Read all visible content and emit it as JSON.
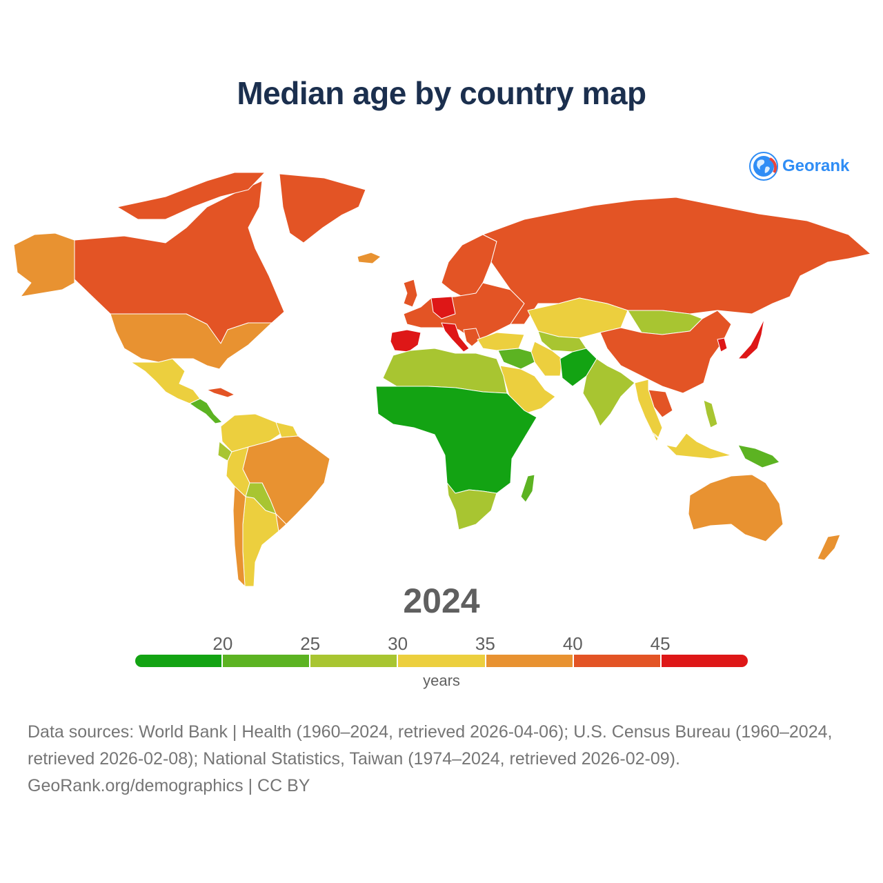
{
  "title": "Median age by country map",
  "brand": {
    "name": "Georank",
    "logo_icon": "globe-icon"
  },
  "year": "2024",
  "legend": {
    "ticks": [
      "20",
      "25",
      "30",
      "35",
      "40",
      "45"
    ],
    "unit": "years",
    "bins": [
      {
        "range": "<20",
        "color": "#13a313"
      },
      {
        "range": "20-25",
        "color": "#5cb322"
      },
      {
        "range": "25-30",
        "color": "#a8c531"
      },
      {
        "range": "30-35",
        "color": "#eccf3e"
      },
      {
        "range": "35-40",
        "color": "#e89231"
      },
      {
        "range": "40-45",
        "color": "#e35425"
      },
      {
        "range": ">45",
        "color": "#de1717"
      }
    ]
  },
  "source": {
    "line1": "Data sources: World Bank | Health (1960–2024, retrieved 2026-04-06); U.S. Census Bureau (1960–2024,",
    "line2": "retrieved 2026-02-08); National Statistics, Taiwan (1974–2024, retrieved 2026-02-09).",
    "line3": "GeoRank.org/demographics | CC BY"
  },
  "chart_data": {
    "type": "choropleth",
    "title": "Median age by country map",
    "year": 2024,
    "value_label": "years",
    "regions": [
      {
        "name": "Canada",
        "bin": "40-45"
      },
      {
        "name": "Alaska (United States)",
        "bin": "35-40"
      },
      {
        "name": "United States",
        "bin": "35-40"
      },
      {
        "name": "Greenland",
        "bin": "40-45"
      },
      {
        "name": "Mexico",
        "bin": "30-35"
      },
      {
        "name": "Central America",
        "bin": "20-25"
      },
      {
        "name": "Cuba",
        "bin": "40-45"
      },
      {
        "name": "Colombia and Venezuela",
        "bin": "30-35"
      },
      {
        "name": "Ecuador",
        "bin": "25-30"
      },
      {
        "name": "Peru",
        "bin": "30-35"
      },
      {
        "name": "Brazil",
        "bin": "35-40"
      },
      {
        "name": "Bolivia and Paraguay",
        "bin": "25-30"
      },
      {
        "name": "Argentina",
        "bin": "30-35"
      },
      {
        "name": "Chile",
        "bin": "35-40"
      },
      {
        "name": "Uruguay",
        "bin": "35-40"
      },
      {
        "name": "Iceland",
        "bin": "35-40"
      },
      {
        "name": "Spain and Portugal",
        "bin": ">45"
      },
      {
        "name": "Germany",
        "bin": ">45"
      },
      {
        "name": "Italy",
        "bin": ">45"
      },
      {
        "name": "Western Europe",
        "bin": "40-45"
      },
      {
        "name": "Scandinavia",
        "bin": "40-45"
      },
      {
        "name": "Eastern Europe",
        "bin": "40-45"
      },
      {
        "name": "Russia",
        "bin": "40-45"
      },
      {
        "name": "Turkey",
        "bin": "30-35"
      },
      {
        "name": "Kazakhstan",
        "bin": "30-35"
      },
      {
        "name": "Mongolia",
        "bin": "25-30"
      },
      {
        "name": "China",
        "bin": "40-45"
      },
      {
        "name": "Japan",
        "bin": ">45"
      },
      {
        "name": "South Korea",
        "bin": ">45"
      },
      {
        "name": "North Africa",
        "bin": "25-30"
      },
      {
        "name": "Saudi Arabia and Gulf",
        "bin": "30-35"
      },
      {
        "name": "Iran",
        "bin": "30-35"
      },
      {
        "name": "Iraq and Syria",
        "bin": "20-25"
      },
      {
        "name": "Central Asia",
        "bin": "25-30"
      },
      {
        "name": "Afghanistan and Pakistan",
        "bin": "<20"
      },
      {
        "name": "India",
        "bin": "25-30"
      },
      {
        "name": "Thailand",
        "bin": "40-45"
      },
      {
        "name": "Mainland Southeast Asia",
        "bin": "30-35"
      },
      {
        "name": "Indonesia",
        "bin": "30-35"
      },
      {
        "name": "Philippines",
        "bin": "25-30"
      },
      {
        "name": "Papua New Guinea",
        "bin": "20-25"
      },
      {
        "name": "Sub-Saharan Africa",
        "bin": "<20"
      },
      {
        "name": "Southern Africa",
        "bin": "25-30"
      },
      {
        "name": "Madagascar",
        "bin": "20-25"
      },
      {
        "name": "Australia",
        "bin": "35-40"
      },
      {
        "name": "New Zealand",
        "bin": "35-40"
      }
    ]
  }
}
